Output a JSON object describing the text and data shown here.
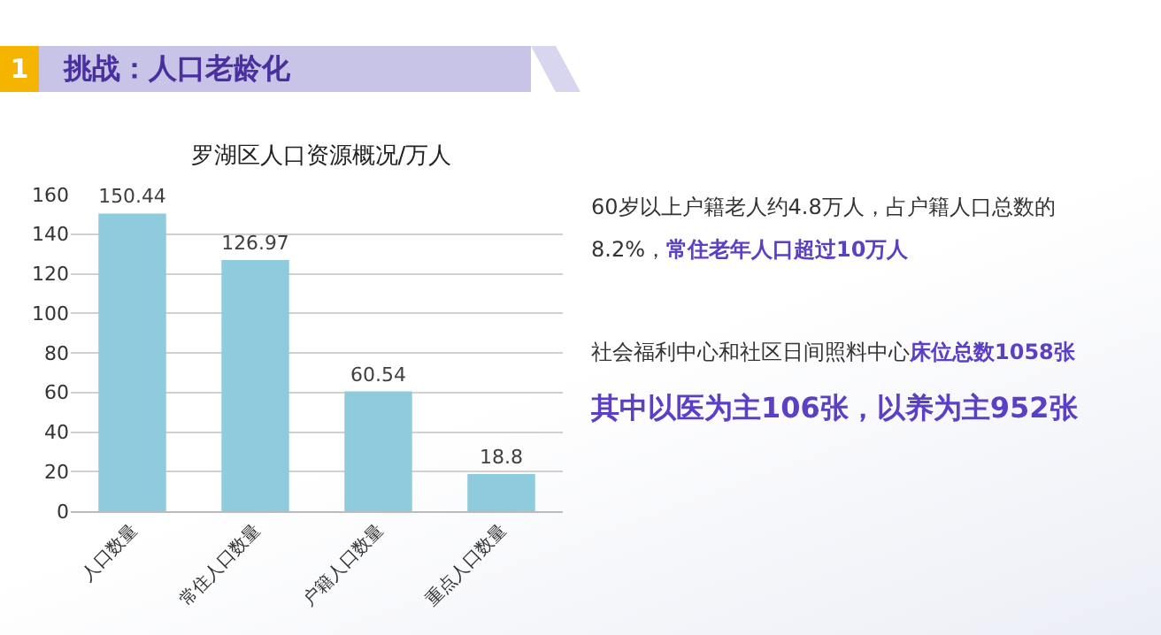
{
  "chart_data": {
    "type": "bar",
    "title": "挑战：人口老龄化",
    "subtitle": "罗湖区人口资源概况/万人",
    "categories": [
      "人口数量",
      "常住人口数量",
      "户籍人口数量",
      "重点人口数量"
    ],
    "values": [
      150.44,
      126.97,
      60.54,
      18.8
    ],
    "color": "#8ecbdc",
    "data_labels": true,
    "ylim": [
      0,
      160
    ],
    "yticks": [
      0,
      20,
      40,
      60,
      80,
      100,
      120,
      140,
      160
    ],
    "grid": "y",
    "annotations": [
      "1",
      "60岁以上户籍老人约4.8万人，占户籍人口总数的",
      "8.2%，",
      "常住老年人口超过10万人",
      "社会福利中心和社区日间照料中心",
      "床位总数1058张",
      "其中以医为主106张，以养为主952张"
    ]
  }
}
